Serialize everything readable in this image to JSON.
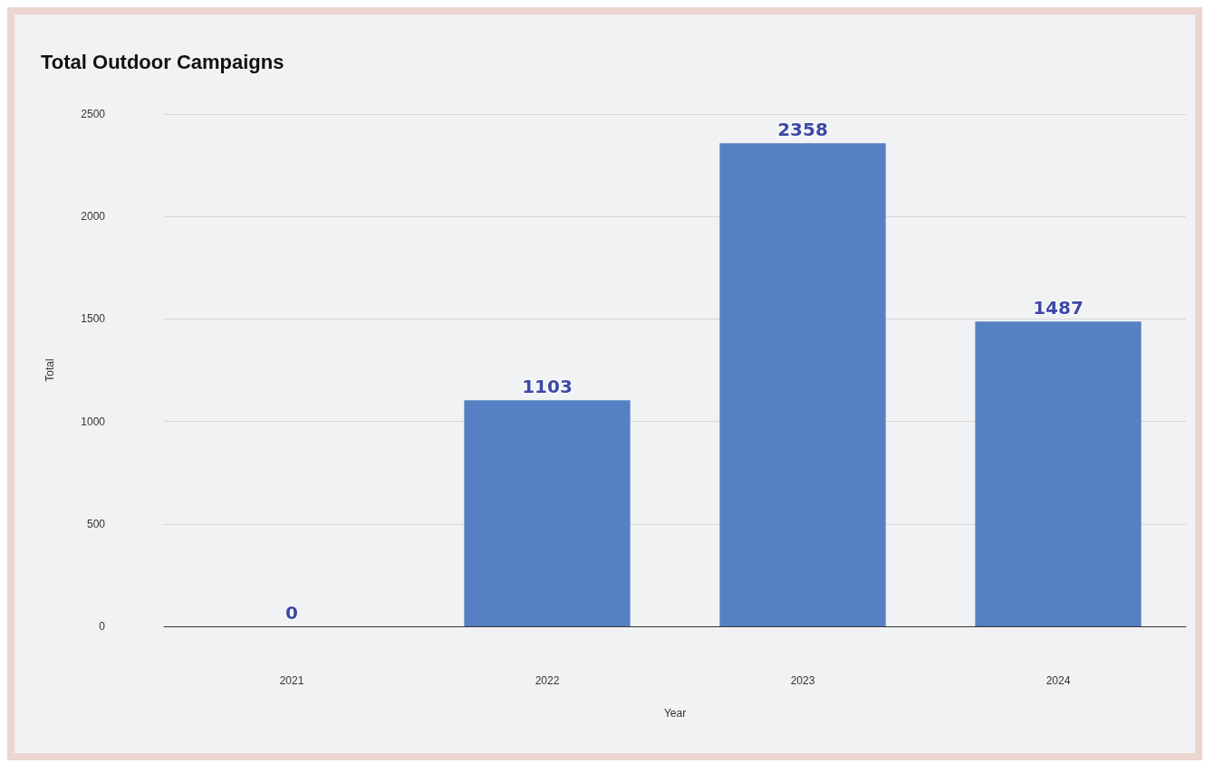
{
  "chart_data": {
    "type": "bar",
    "title": "Total Outdoor Campaigns",
    "xlabel": "Year",
    "ylabel": "Total",
    "categories": [
      "2021",
      "2022",
      "2023",
      "2024"
    ],
    "values": [
      0,
      1103,
      2358,
      1487
    ],
    "color": "#5580c4",
    "ylim": [
      0,
      2500
    ],
    "yticks": [
      0,
      500,
      1000,
      1500,
      2000,
      2500
    ],
    "grid": "y",
    "data_labels": true
  }
}
